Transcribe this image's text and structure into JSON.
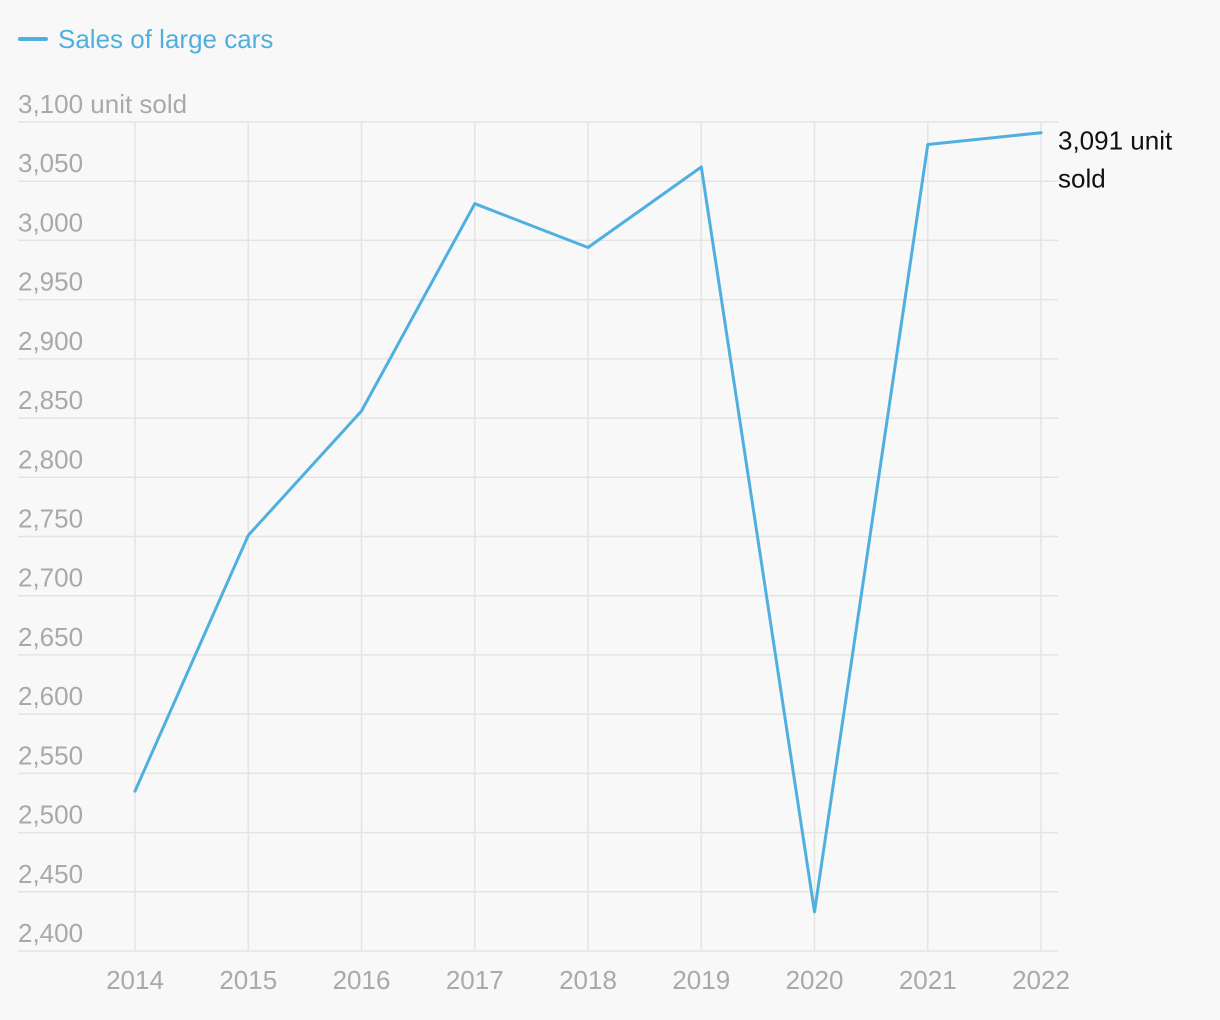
{
  "legend": {
    "items": [
      {
        "label": "Sales of large cars",
        "color": "#4fb0e0"
      }
    ]
  },
  "chart_data": {
    "type": "line",
    "title": "",
    "xlabel": "",
    "ylabel": "",
    "x": [
      "2014",
      "2015",
      "2016",
      "2017",
      "2018",
      "2019",
      "2020",
      "2021",
      "2022"
    ],
    "series": [
      {
        "name": "Sales of large cars",
        "color": "#4fb0e0",
        "values": [
          2535,
          2751,
          2856,
          3031,
          2994,
          3062,
          2433,
          3081,
          3091
        ]
      }
    ],
    "ylim": [
      2400,
      3100
    ],
    "y_ticks": [
      2400,
      2450,
      2500,
      2550,
      2600,
      2650,
      2700,
      2750,
      2800,
      2850,
      2900,
      2950,
      3000,
      3050,
      3100
    ],
    "y_tick_labels": [
      "2,400",
      "2,450",
      "2,500",
      "2,550",
      "2,600",
      "2,650",
      "2,700",
      "2,750",
      "2,800",
      "2,850",
      "2,900",
      "2,950",
      "3,000",
      "3,050",
      "3,100 unit sold"
    ],
    "grid": true,
    "end_label": {
      "line1": "3,091 unit",
      "line2": "sold"
    },
    "legend_position": "top-left"
  }
}
